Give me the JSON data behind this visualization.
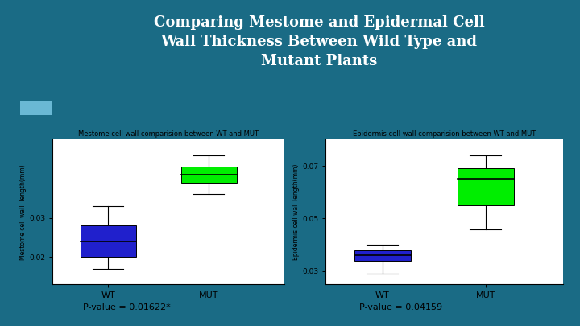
{
  "title": "Comparing Mestome and Epidermal Cell\nWall Thickness Between Wild Type and\nMutant Plants",
  "title_color": "white",
  "background_color": "#1a6b85",
  "panel_bg": "white",
  "left_plot": {
    "title": "Mestome cell wall comparision between WT and MUT",
    "ylabel": "Mestome cell wall  length(mm)",
    "categories": [
      "WT",
      "MUT"
    ],
    "wt": {
      "min": 0.017,
      "q1": 0.02,
      "median": 0.024,
      "q3": 0.028,
      "max": 0.033,
      "color": "#2020cc"
    },
    "mut": {
      "min": 0.036,
      "q1": 0.039,
      "median": 0.041,
      "q3": 0.043,
      "max": 0.046,
      "color": "#00ee00"
    },
    "ylim": [
      0.013,
      0.05
    ],
    "yticks": [
      0.02,
      0.03
    ],
    "pvalue": "P-value = 0.01622*"
  },
  "right_plot": {
    "title": "Epidermis cell wall comparision between WT and MUT",
    "ylabel": "Epidermis cell wall length(mm)",
    "categories": [
      "WT",
      "MUT"
    ],
    "wt": {
      "min": 0.029,
      "q1": 0.034,
      "median": 0.036,
      "q3": 0.038,
      "max": 0.04,
      "color": "#2020cc"
    },
    "mut": {
      "min": 0.046,
      "q1": 0.055,
      "median": 0.065,
      "q3": 0.069,
      "max": 0.074,
      "color": "#00ee00"
    },
    "ylim": [
      0.025,
      0.08
    ],
    "yticks": [
      0.03,
      0.05,
      0.07
    ],
    "pvalue": "P-value = 0.04159"
  },
  "accent_color": "#6ab8d4",
  "title_fontsize": 13,
  "pvalue_fontsize": 8
}
